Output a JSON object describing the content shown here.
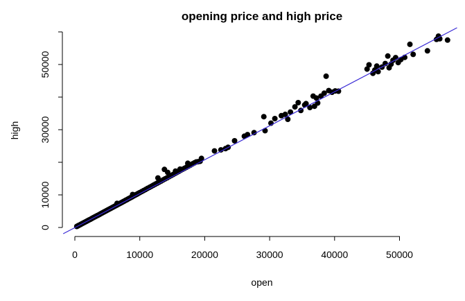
{
  "chart_data": {
    "type": "scatter",
    "title": "opening price and high price",
    "xlabel": "open",
    "ylabel": "high",
    "xlim": [
      0,
      58000
    ],
    "ylim": [
      0,
      60000
    ],
    "x_ticks": [
      "0",
      "10000",
      "20000",
      "30000",
      "40000",
      "50000"
    ],
    "y_ticks": [
      "0",
      "10000",
      "30000",
      "50000"
    ],
    "y_tick_values": [
      0,
      10000,
      20000,
      30000,
      40000,
      50000,
      60000
    ],
    "grid": false,
    "point_color": "#000000",
    "line_color": "#3a2bd6",
    "regression_line": {
      "intercept": -50,
      "slope": 1.042
    },
    "series": [
      {
        "values": [
          [
            300,
            320
          ],
          [
            450,
            470
          ],
          [
            600,
            630
          ],
          [
            800,
            840
          ],
          [
            950,
            1000
          ],
          [
            1200,
            1260
          ],
          [
            1400,
            1460
          ],
          [
            1600,
            1690
          ],
          [
            1800,
            1890
          ],
          [
            2000,
            2100
          ],
          [
            2200,
            2310
          ],
          [
            2400,
            2520
          ],
          [
            2600,
            2740
          ],
          [
            2800,
            2950
          ],
          [
            3000,
            3160
          ],
          [
            3200,
            3380
          ],
          [
            3400,
            3590
          ],
          [
            3600,
            3790
          ],
          [
            3800,
            4010
          ],
          [
            4000,
            4230
          ],
          [
            4200,
            4440
          ],
          [
            4400,
            4650
          ],
          [
            4600,
            4870
          ],
          [
            4800,
            5080
          ],
          [
            5000,
            5300
          ],
          [
            5200,
            5510
          ],
          [
            5400,
            5720
          ],
          [
            5600,
            5940
          ],
          [
            5800,
            6150
          ],
          [
            6000,
            6370
          ],
          [
            6200,
            6580
          ],
          [
            6400,
            6800
          ],
          [
            6600,
            7010
          ],
          [
            6800,
            7230
          ],
          [
            7000,
            7450
          ],
          [
            7200,
            7660
          ],
          [
            7400,
            7880
          ],
          [
            7600,
            8090
          ],
          [
            7800,
            8310
          ],
          [
            8000,
            8520
          ],
          [
            8200,
            8750
          ],
          [
            8400,
            8960
          ],
          [
            8600,
            9180
          ],
          [
            8800,
            9390
          ],
          [
            9000,
            9610
          ],
          [
            9200,
            9820
          ],
          [
            9400,
            10050
          ],
          [
            9600,
            10260
          ],
          [
            9800,
            10480
          ],
          [
            10000,
            10700
          ],
          [
            10300,
            11020
          ],
          [
            10600,
            11350
          ],
          [
            10900,
            11670
          ],
          [
            11200,
            12000
          ],
          [
            11500,
            12320
          ],
          [
            11800,
            12640
          ],
          [
            12100,
            12970
          ],
          [
            12400,
            13290
          ],
          [
            12700,
            13610
          ],
          [
            13000,
            13940
          ],
          [
            13300,
            14260
          ],
          [
            13600,
            14590
          ],
          [
            13900,
            14920
          ],
          [
            14200,
            15240
          ],
          [
            14500,
            15570
          ],
          [
            14800,
            15900
          ],
          [
            15100,
            16220
          ],
          [
            15400,
            16550
          ],
          [
            15700,
            16880
          ],
          [
            16000,
            17200
          ],
          [
            16300,
            17530
          ],
          [
            16600,
            17850
          ],
          [
            16900,
            18180
          ],
          [
            17200,
            18500
          ],
          [
            17500,
            18830
          ],
          [
            17800,
            19150
          ],
          [
            18100,
            19480
          ],
          [
            18400,
            19800
          ],
          [
            18700,
            20100
          ],
          [
            19000,
            20200
          ],
          [
            19300,
            20300
          ],
          [
            19500,
            21200
          ],
          [
            13800,
            17800
          ],
          [
            15500,
            17300
          ],
          [
            16200,
            17900
          ],
          [
            17400,
            19700
          ],
          [
            8900,
            10100
          ],
          [
            6500,
            7400
          ],
          [
            12800,
            15200
          ],
          [
            14300,
            16900
          ],
          [
            21500,
            23500
          ],
          [
            22500,
            23800
          ],
          [
            23200,
            24200
          ],
          [
            23600,
            24600
          ],
          [
            24600,
            26600
          ],
          [
            26100,
            28000
          ],
          [
            26600,
            28500
          ],
          [
            27600,
            29100
          ],
          [
            29300,
            29700
          ],
          [
            29100,
            34000
          ],
          [
            30200,
            32000
          ],
          [
            30800,
            33400
          ],
          [
            31800,
            34300
          ],
          [
            32400,
            34700
          ],
          [
            32800,
            33200
          ],
          [
            33200,
            35400
          ],
          [
            33900,
            37000
          ],
          [
            34400,
            38300
          ],
          [
            34800,
            35900
          ],
          [
            35400,
            37600
          ],
          [
            35600,
            38000
          ],
          [
            36200,
            36800
          ],
          [
            36700,
            40300
          ],
          [
            36900,
            37200
          ],
          [
            37200,
            39700
          ],
          [
            37400,
            38200
          ],
          [
            37900,
            40300
          ],
          [
            38400,
            41200
          ],
          [
            38700,
            46400
          ],
          [
            39100,
            42000
          ],
          [
            39600,
            41500
          ],
          [
            40100,
            41900
          ],
          [
            40600,
            41800
          ],
          [
            45000,
            48600
          ],
          [
            45300,
            49900
          ],
          [
            45900,
            47300
          ],
          [
            46200,
            48300
          ],
          [
            46500,
            49500
          ],
          [
            46700,
            47800
          ],
          [
            47300,
            49200
          ],
          [
            47800,
            50300
          ],
          [
            48200,
            52600
          ],
          [
            48400,
            49000
          ],
          [
            48700,
            50100
          ],
          [
            49000,
            51300
          ],
          [
            49400,
            52100
          ],
          [
            49800,
            50600
          ],
          [
            50200,
            51500
          ],
          [
            50800,
            52200
          ],
          [
            51600,
            56200
          ],
          [
            52100,
            53100
          ],
          [
            54300,
            54200
          ],
          [
            55700,
            57700
          ],
          [
            56000,
            58700
          ],
          [
            56200,
            57900
          ],
          [
            57400,
            57500
          ]
        ]
      }
    ]
  }
}
